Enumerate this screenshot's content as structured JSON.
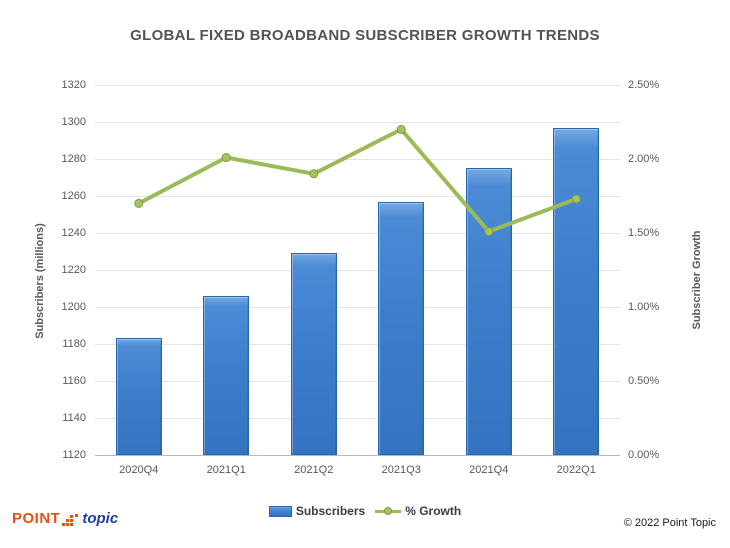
{
  "chart_data": {
    "type": "combo",
    "title": "GLOBAL FIXED BROADBAND SUBSCRIBER GROWTH TRENDS",
    "categories": [
      "2020Q4",
      "2021Q1",
      "2021Q2",
      "2021Q3",
      "2021Q4",
      "2022Q1"
    ],
    "series": [
      {
        "name": "Subscribers",
        "type": "bar",
        "axis": "left",
        "values": [
          1183,
          1206,
          1229,
          1257,
          1275,
          1297
        ]
      },
      {
        "name": "% Growth",
        "type": "line",
        "axis": "right",
        "values": [
          1.7,
          2.01,
          1.9,
          2.2,
          1.51,
          1.73
        ]
      }
    ],
    "left_axis": {
      "label": "Subscribers (millions)",
      "min": 1120,
      "max": 1320,
      "ticks": [
        "1320",
        "1300",
        "1280",
        "1260",
        "1240",
        "1220",
        "1200",
        "1180",
        "1160",
        "1140",
        "1120"
      ]
    },
    "right_axis": {
      "label": "Subscriber Growth",
      "min": 0,
      "max": 2.5,
      "ticks": [
        "2.50%",
        "2.00%",
        "1.50%",
        "1.00%",
        "0.50%",
        "0.00%"
      ]
    },
    "grid": true,
    "legend_position": "bottom",
    "colors": {
      "bar": "#3d7ecb",
      "bar_border": "#2a66ac",
      "line": "#9bbb59",
      "marker": "#a6c45e",
      "marker_border": "#7e9d3f"
    }
  },
  "footer": {
    "logo_point": "POINT",
    "logo_topic": "topic",
    "copyright": "© 2022 Point Topic"
  }
}
